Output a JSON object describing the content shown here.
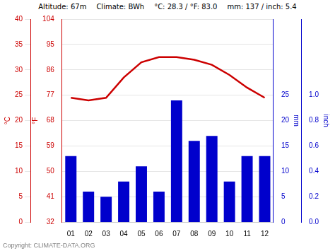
{
  "chart_data": {
    "type": "bar",
    "categories": [
      "01",
      "02",
      "03",
      "04",
      "05",
      "06",
      "07",
      "08",
      "09",
      "10",
      "11",
      "12"
    ],
    "series": [
      {
        "type": "bar",
        "color": "#0000cc",
        "axis": "y2",
        "values": [
          13,
          6,
          5,
          8,
          11,
          6,
          24,
          16,
          17,
          8,
          13,
          13
        ]
      },
      {
        "type": "line",
        "color": "#cc0000",
        "values": [
          24.5,
          24.0,
          24.5,
          28.5,
          31.5,
          32.5,
          32.5,
          32.0,
          31.0,
          29.0,
          26.5,
          24.5
        ]
      }
    ],
    "ylabel": "°C",
    "ylim": [
      0,
      40
    ],
    "yticks": [
      0,
      5,
      10,
      15,
      20,
      25,
      30,
      35,
      40
    ],
    "y2label": "mm",
    "y2lim": [
      0,
      40
    ],
    "y2ticks": [
      0,
      5,
      10,
      15,
      20,
      25
    ],
    "y3label": "°F",
    "y3lim": [
      32,
      104
    ],
    "y3ticks": [
      32,
      41,
      50,
      59,
      68,
      77,
      86,
      95,
      104
    ],
    "y4label": "inch",
    "y4lim": [
      0,
      1.6
    ],
    "y4ticks": [
      {
        "value": 0,
        "label": "0.0"
      },
      0.2,
      0.4,
      0.6,
      0.8,
      {
        "value": 1,
        "label": "1.0"
      }
    ],
    "grid": true,
    "annotations": [
      "Altitude: 67m",
      "Climate: BWh",
      "°C: 28.3 / °F: 83.0",
      "mm: 137 / inch: 5.4"
    ],
    "subtitle": "Copyright: CLIMATE-DATA.ORG"
  }
}
